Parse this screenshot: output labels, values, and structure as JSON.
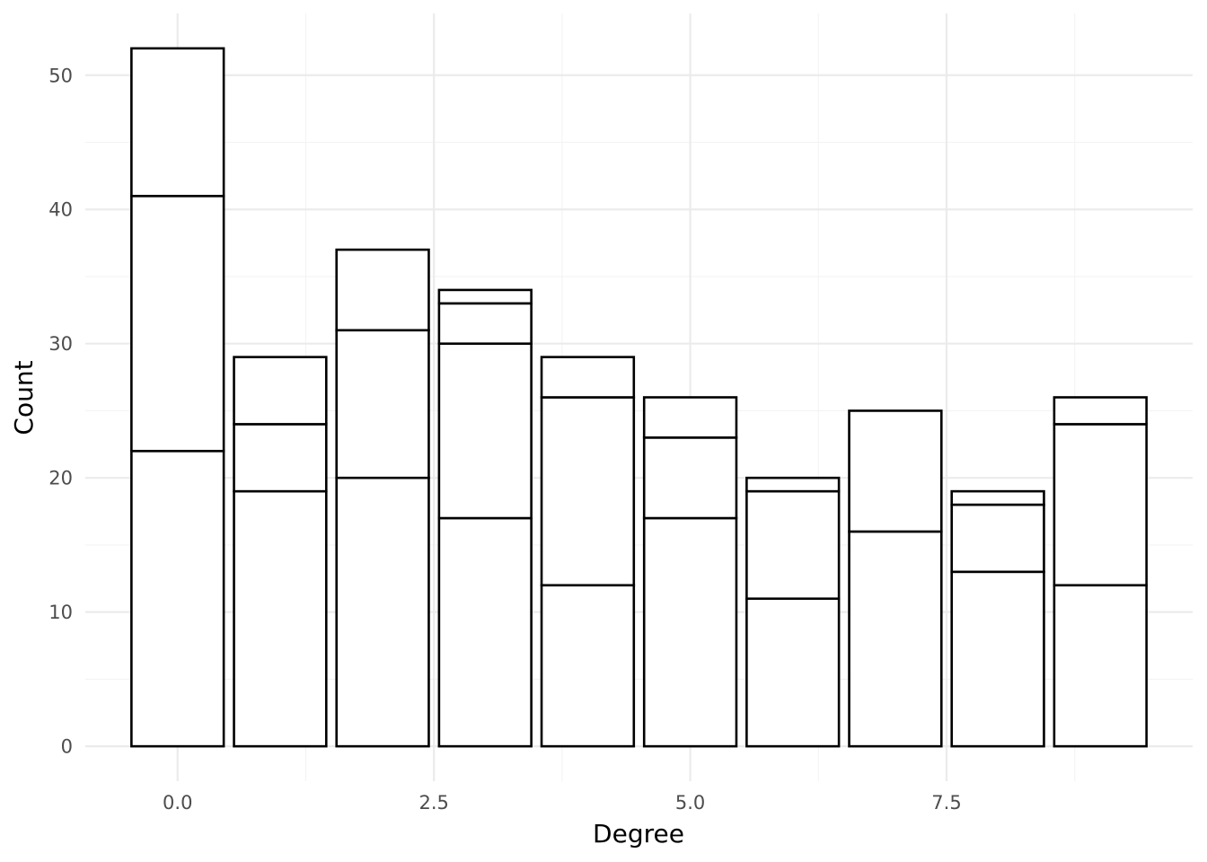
{
  "chart_data": {
    "type": "bar",
    "stacked": true,
    "xlabel": "Degree",
    "ylabel": "Count",
    "xlim": [
      -0.9,
      9.9
    ],
    "ylim": [
      -2.6,
      54.6
    ],
    "x_ticks": [
      0.0,
      2.5,
      5.0,
      7.5
    ],
    "x_tick_labels": [
      "0.0",
      "2.5",
      "5.0",
      "7.5"
    ],
    "y_ticks": [
      0,
      10,
      20,
      30,
      40,
      50
    ],
    "y_tick_labels": [
      "0",
      "10",
      "20",
      "30",
      "40",
      "50"
    ],
    "grid": true,
    "bar_fill": "#ffffff",
    "bar_outline": "#000000",
    "bars": [
      {
        "x": 0,
        "boundaries": [
          22,
          41,
          52
        ]
      },
      {
        "x": 1,
        "boundaries": [
          19,
          24,
          29
        ]
      },
      {
        "x": 2,
        "boundaries": [
          20,
          31,
          37
        ]
      },
      {
        "x": 3,
        "boundaries": [
          17,
          30,
          33,
          34
        ]
      },
      {
        "x": 4,
        "boundaries": [
          12,
          26,
          29
        ]
      },
      {
        "x": 5,
        "boundaries": [
          17,
          23,
          26
        ]
      },
      {
        "x": 6,
        "boundaries": [
          11,
          19,
          20
        ]
      },
      {
        "x": 7,
        "boundaries": [
          16,
          25
        ]
      },
      {
        "x": 8,
        "boundaries": [
          13,
          18,
          19
        ]
      },
      {
        "x": 9,
        "boundaries": [
          12,
          24,
          26
        ]
      }
    ]
  }
}
